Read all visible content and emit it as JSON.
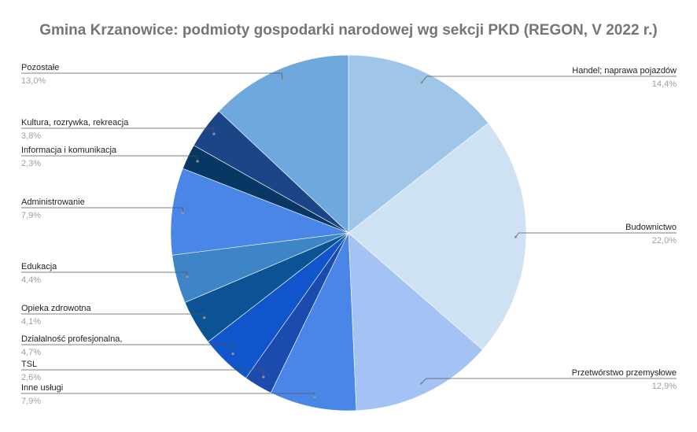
{
  "chart_data": {
    "type": "pie",
    "title": "Gmina Krzanowice: podmioty gospodarki narodowej wg sekcji PKD (REGON, V 2022 r.)",
    "slices": [
      {
        "label": "Handel; naprawa pojazdów",
        "pct_label": "14,4%",
        "value": 14.4,
        "color": "#9fc5e8"
      },
      {
        "label": "Budownictwo",
        "pct_label": "22,0%",
        "value": 22.0,
        "color": "#cfe2f3"
      },
      {
        "label": "Przetwórstwo przemysłowe",
        "pct_label": "12,9%",
        "value": 12.9,
        "color": "#a4c2f4"
      },
      {
        "label": "Inne usługi",
        "pct_label": "7,9%",
        "value": 7.9,
        "color": "#4a86e8"
      },
      {
        "label": "TSL",
        "pct_label": "2,6%",
        "value": 2.6,
        "color": "#1c4bb0"
      },
      {
        "label": "Działalność profesjonalna,",
        "pct_label": "4,7%",
        "value": 4.7,
        "color": "#1155cc"
      },
      {
        "label": "Opieka zdrowotna",
        "pct_label": "4,1%",
        "value": 4.1,
        "color": "#0b5394"
      },
      {
        "label": "Edukacja",
        "pct_label": "4,4%",
        "value": 4.4,
        "color": "#3d85c6"
      },
      {
        "label": "Administrowanie",
        "pct_label": "7,9%",
        "value": 7.9,
        "color": "#4a86e8"
      },
      {
        "label": "Informacja i komunikacja",
        "pct_label": "2,3%",
        "value": 2.3,
        "color": "#073763"
      },
      {
        "label": "Kultura, rozrywka, rekreacja",
        "pct_label": "3,8%",
        "value": 3.8,
        "color": "#1c4587"
      },
      {
        "label": "Pozostałe",
        "pct_label": "13,0%",
        "value": 13.0,
        "color": "#6fa8dc"
      }
    ]
  }
}
